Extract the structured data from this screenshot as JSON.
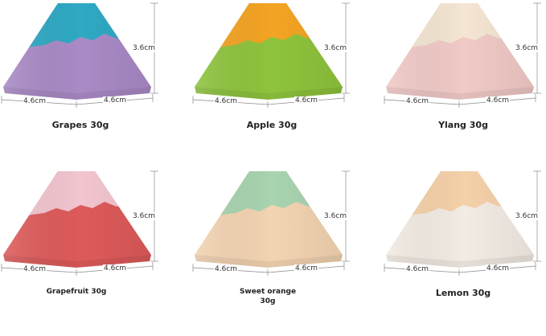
{
  "products": [
    {
      "name": "Grapes 30g",
      "height": "3.6cm",
      "width_left": "4.6cm",
      "width_right": "4.6cm",
      "colors": {
        "top": "#2fa9c4",
        "bottom": "#a98ac6"
      }
    },
    {
      "name": "Apple 30g",
      "height": "3.6cm",
      "width_left": "4.6cm",
      "width_right": "4.6cm",
      "colors": {
        "top": "#f4a424",
        "bottom": "#8ec43c"
      }
    },
    {
      "name": "Ylang 30g",
      "height": "3.6cm",
      "width_left": "4.6cm",
      "width_right": "4.6cm",
      "colors": {
        "top": "#f4e6d2",
        "bottom": "#f1cac7"
      }
    },
    {
      "name": "Grapefruit 30g",
      "height": "3.6cm",
      "width_left": "4.6cm",
      "width_right": "4.6cm",
      "colors": {
        "top": "#f2c5cf",
        "bottom": "#de5a5a"
      }
    },
    {
      "name": "Sweet orange 30g",
      "height": "3.6cm",
      "width_left": "4.6cm",
      "width_right": "4.6cm",
      "colors": {
        "top": "#a9d4b0",
        "bottom": "#f3d4b2"
      }
    },
    {
      "name": "Lemon 30g",
      "height": "3.6cm",
      "width_left": "4.6cm",
      "width_right": "4.6cm",
      "colors": {
        "top": "#f5d1a9",
        "bottom": "#f3ece4"
      }
    }
  ]
}
